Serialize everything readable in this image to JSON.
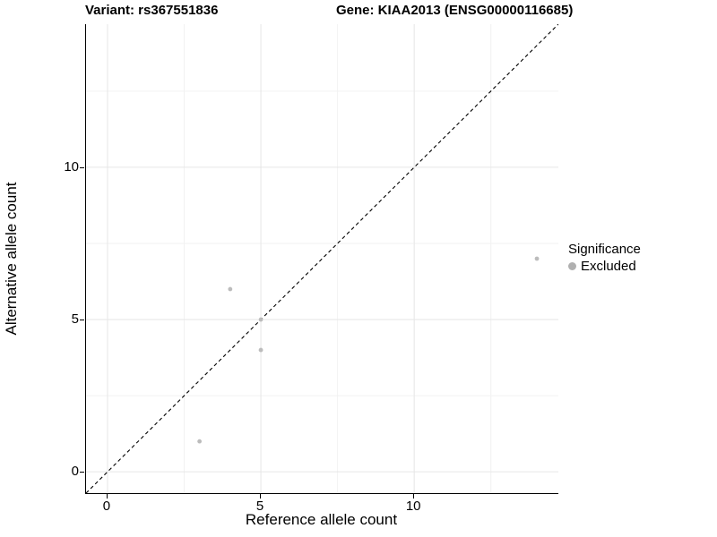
{
  "chart_data": {
    "type": "scatter",
    "title_left": "Variant: rs367551836",
    "title_right": "Gene: KIAA2013 (ENSG00000116685)",
    "xlabel": "Reference allele count",
    "ylabel": "Alternative allele count",
    "xlim": [
      -0.7,
      14.7
    ],
    "ylim": [
      -0.7,
      14.7
    ],
    "x_major_ticks": [
      0,
      5,
      10
    ],
    "y_major_ticks": [
      0,
      5,
      10
    ],
    "x_minor_ticks": [
      2.5,
      7.5,
      12.5
    ],
    "y_minor_ticks": [
      2.5,
      7.5,
      12.5
    ],
    "grid": true,
    "identity_line": {
      "type": "y=x",
      "style": "dashed",
      "color": "#000000"
    },
    "series": [
      {
        "name": "Excluded",
        "color": "#bcbcbc",
        "points": [
          {
            "x": 3,
            "y": 1
          },
          {
            "x": 4,
            "y": 6
          },
          {
            "x": 5,
            "y": 4
          },
          {
            "x": 5,
            "y": 5
          },
          {
            "x": 14,
            "y": 7
          }
        ]
      }
    ],
    "legend": {
      "title": "Significance",
      "position": "right",
      "items": [
        {
          "label": "Excluded",
          "color": "#b0b0b0"
        }
      ]
    }
  },
  "colors": {
    "background": "#ffffff",
    "axis_line": "#000000",
    "grid_major": "#e6e6e6",
    "grid_minor": "#f2f2f2",
    "text": "#000000",
    "point": "#bcbcbc"
  }
}
